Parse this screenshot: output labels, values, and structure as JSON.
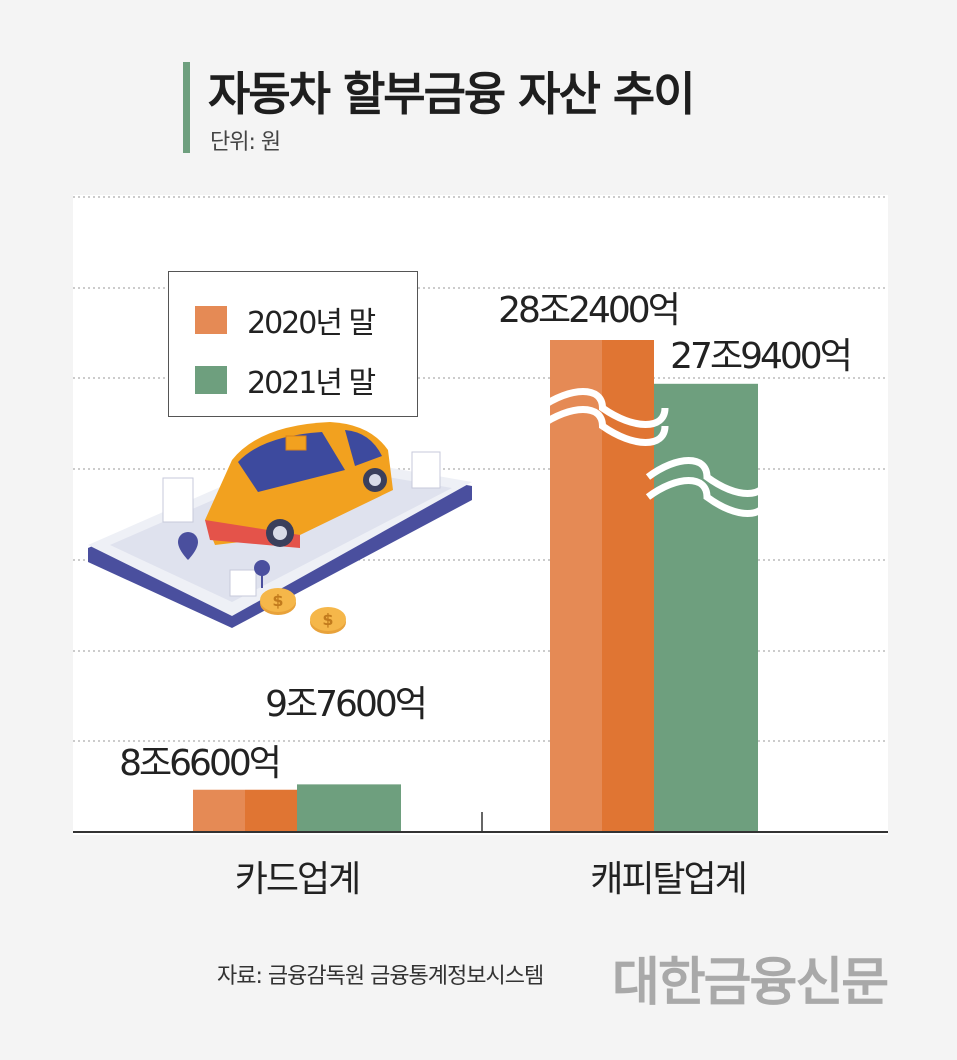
{
  "header": {
    "title": "자동차 할부금융 자산 추이",
    "unit": "단위: 원"
  },
  "colors": {
    "series_2020": "#e58a55",
    "series_2020_dark": "#e07533",
    "series_2021": "#6e9f7e",
    "accent_bar": "#6e9f7e"
  },
  "chart_data": {
    "type": "bar",
    "categories": [
      "카드업계",
      "캐피탈업계"
    ],
    "series": [
      {
        "name": "2020년 말",
        "values": [
          8.66,
          28.24
        ],
        "labels": [
          "8조6600억",
          "28조2400억"
        ]
      },
      {
        "name": "2021년 말",
        "values": [
          9.76,
          27.94
        ],
        "labels": [
          "9조7600억",
          "27조9400억"
        ]
      }
    ],
    "value_unit": "조 원",
    "axis_break": true,
    "grid": true,
    "legend_position": "top-left"
  },
  "footer": {
    "source": "자료: 금융감독원 금융통계정보시스템",
    "logo": "대한금융신문"
  }
}
